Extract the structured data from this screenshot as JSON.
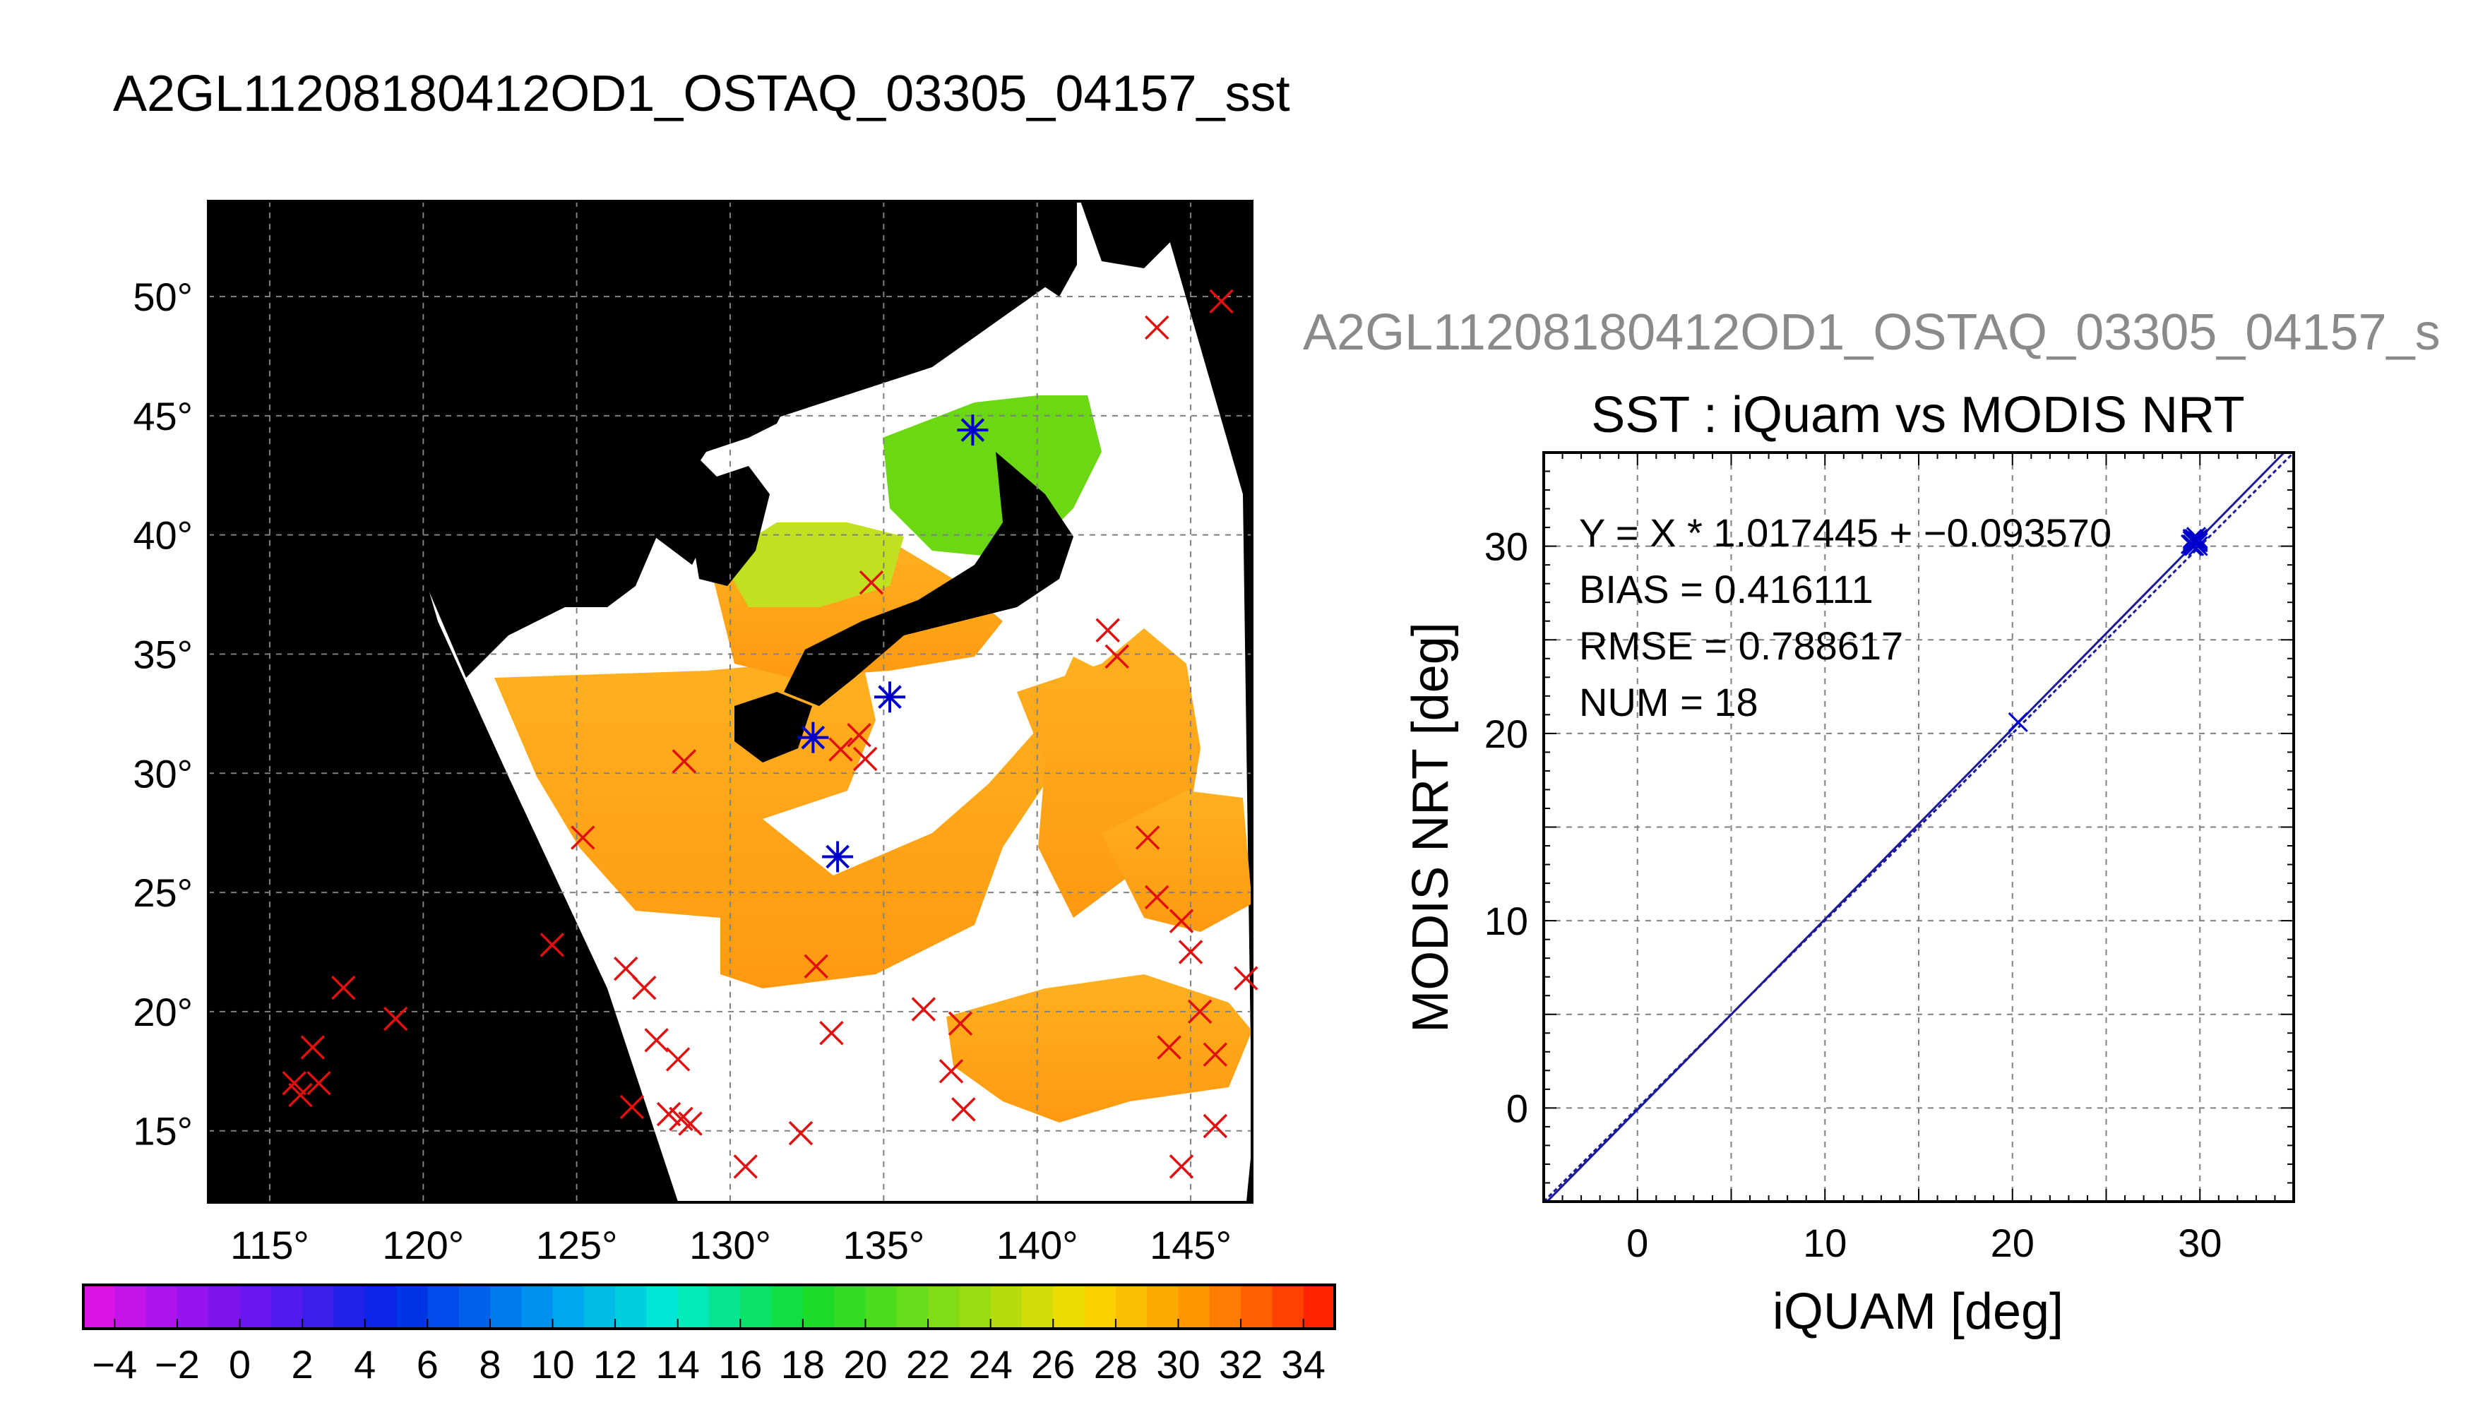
{
  "figure_title": "A2GL11208180412OD1_OSTAQ_03305_04157_sst",
  "scatter_header": "A2GL11208180412OD1_OSTAQ_03305_04157_s",
  "colors": {
    "frame": "#000000",
    "land_mask": "#000000",
    "no_data": "#ffffff",
    "regression_line": "#1a1a99",
    "match_marker": "#0000cc",
    "buoy_marker": "#e01010",
    "grid": "#808080"
  },
  "chart_data": [
    {
      "type": "heatmap",
      "name": "sst-map",
      "lon_range": [
        113,
        147
      ],
      "lat_range": [
        12,
        54
      ],
      "lon_ticks": [
        "115°",
        "120°",
        "125°",
        "130°",
        "135°",
        "140°",
        "145°"
      ],
      "lat_ticks": [
        "15°",
        "20°",
        "25°",
        "30°",
        "35°",
        "40°",
        "45°",
        "50°"
      ],
      "lon_tick_values": [
        115,
        120,
        125,
        130,
        135,
        140,
        145
      ],
      "lat_tick_values": [
        15,
        20,
        25,
        30,
        35,
        40,
        45,
        50
      ],
      "grid": true,
      "colorbar": {
        "min": -5,
        "max": 35,
        "step": 1,
        "tick_labels": [
          "-4",
          "-2",
          "0",
          "2",
          "4",
          "6",
          "8",
          "10",
          "12",
          "14",
          "16",
          "18",
          "20",
          "22",
          "24",
          "26",
          "28",
          "30",
          "32",
          "34"
        ],
        "tick_values": [
          -4,
          -2,
          0,
          2,
          4,
          6,
          8,
          10,
          12,
          14,
          16,
          18,
          20,
          22,
          24,
          26,
          28,
          30,
          32,
          34
        ]
      },
      "red_markers": [
        [
          115.8,
          17.0
        ],
        [
          116.0,
          16.5
        ],
        [
          116.6,
          17.0
        ],
        [
          116.4,
          18.5
        ],
        [
          117.4,
          21.0
        ],
        [
          119.1,
          19.7
        ],
        [
          124.2,
          22.8
        ],
        [
          125.2,
          27.3
        ],
        [
          126.6,
          21.8
        ],
        [
          127.2,
          21.0
        ],
        [
          127.6,
          18.8
        ],
        [
          128.3,
          18.0
        ],
        [
          126.8,
          16.0
        ],
        [
          128.0,
          15.7
        ],
        [
          128.4,
          15.5
        ],
        [
          128.7,
          15.3
        ],
        [
          130.5,
          13.5
        ],
        [
          132.3,
          14.9
        ],
        [
          132.8,
          21.9
        ],
        [
          133.3,
          19.1
        ],
        [
          128.5,
          30.5
        ],
        [
          133.6,
          31.0
        ],
        [
          134.4,
          30.6
        ],
        [
          134.2,
          31.6
        ],
        [
          134.6,
          38.0
        ],
        [
          136.3,
          20.1
        ],
        [
          137.2,
          17.5
        ],
        [
          137.5,
          19.5
        ],
        [
          137.6,
          15.9
        ],
        [
          142.3,
          36.0
        ],
        [
          142.6,
          34.9
        ],
        [
          143.6,
          27.3
        ],
        [
          143.9,
          24.8
        ],
        [
          144.3,
          18.5
        ],
        [
          144.7,
          23.8
        ],
        [
          145.0,
          22.5
        ],
        [
          145.3,
          20.0
        ],
        [
          145.8,
          18.2
        ],
        [
          145.8,
          15.2
        ],
        [
          144.7,
          13.5
        ],
        [
          143.9,
          48.7
        ],
        [
          146.0,
          49.8
        ],
        [
          146.8,
          21.4
        ]
      ],
      "blue_markers": [
        [
          137.9,
          44.4
        ],
        [
          132.7,
          31.5
        ],
        [
          135.2,
          33.2
        ],
        [
          133.5,
          26.5
        ]
      ]
    },
    {
      "type": "scatter",
      "name": "iquam-vs-modis",
      "title": "SST : iQuam vs MODIS NRT",
      "xlabel": "iQUAM [deg]",
      "ylabel": "MODIS NRT [deg]",
      "xlim": [
        -5,
        35
      ],
      "ylim": [
        -5,
        35
      ],
      "x_ticks": [
        0,
        10,
        20,
        30
      ],
      "y_ticks": [
        0,
        10,
        20,
        30
      ],
      "grid": true,
      "annotations": [
        "Y = X * 1.017445 + −0.093570",
        "BIAS = 0.416111",
        "RMSE = 0.788617",
        "NUM = 18"
      ],
      "regression": {
        "slope": 1.017445,
        "intercept": -0.09357
      },
      "points": [
        [
          20.3,
          20.6
        ],
        [
          29.6,
          30.1
        ],
        [
          29.7,
          30.3
        ],
        [
          29.8,
          30.2
        ],
        [
          29.9,
          30.4
        ],
        [
          29.6,
          30.0
        ],
        [
          29.8,
          30.5
        ],
        [
          29.7,
          30.0
        ],
        [
          29.9,
          30.2
        ],
        [
          29.5,
          30.1
        ],
        [
          29.8,
          30.3
        ],
        [
          29.6,
          30.4
        ],
        [
          29.9,
          30.0
        ],
        [
          29.7,
          30.2
        ],
        [
          29.8,
          30.1
        ],
        [
          29.6,
          30.3
        ],
        [
          29.9,
          30.3
        ],
        [
          29.7,
          30.4
        ]
      ]
    }
  ]
}
